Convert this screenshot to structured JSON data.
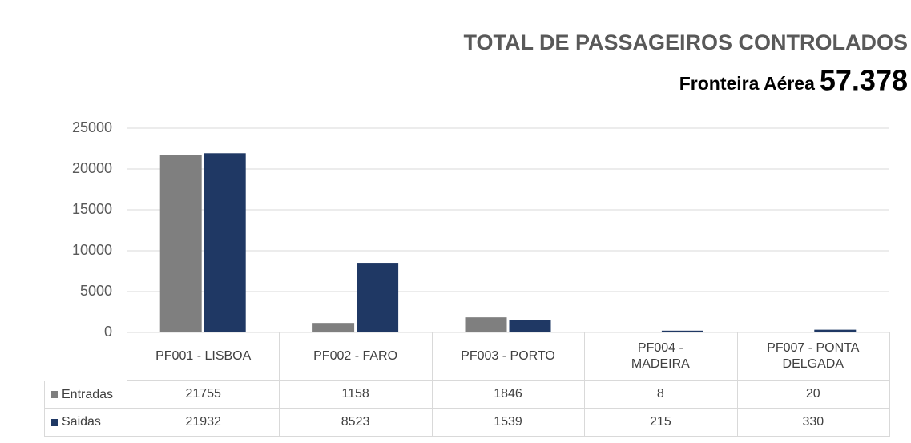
{
  "chart_data": {
    "type": "bar",
    "title": "TOTAL DE PASSAGEIROS CONTROLADOS",
    "subtitle": "Fronteira Aérea",
    "total": "57.378",
    "categories": [
      "PF001 - LISBOA",
      "PF002 - FARO",
      "PF003 - PORTO",
      "PF004 - MADEIRA",
      "PF007 - PONTA DELGADA"
    ],
    "series": [
      {
        "name": "Entradas",
        "color": "#7f7f7f",
        "values": [
          21755,
          1158,
          1846,
          8,
          20
        ]
      },
      {
        "name": "Saidas",
        "color": "#1f3864",
        "values": [
          21932,
          8523,
          1539,
          215,
          330
        ]
      }
    ],
    "ylim": [
      0,
      25000
    ],
    "yticks": [
      0,
      5000,
      10000,
      15000,
      20000,
      25000
    ],
    "grid": true
  }
}
